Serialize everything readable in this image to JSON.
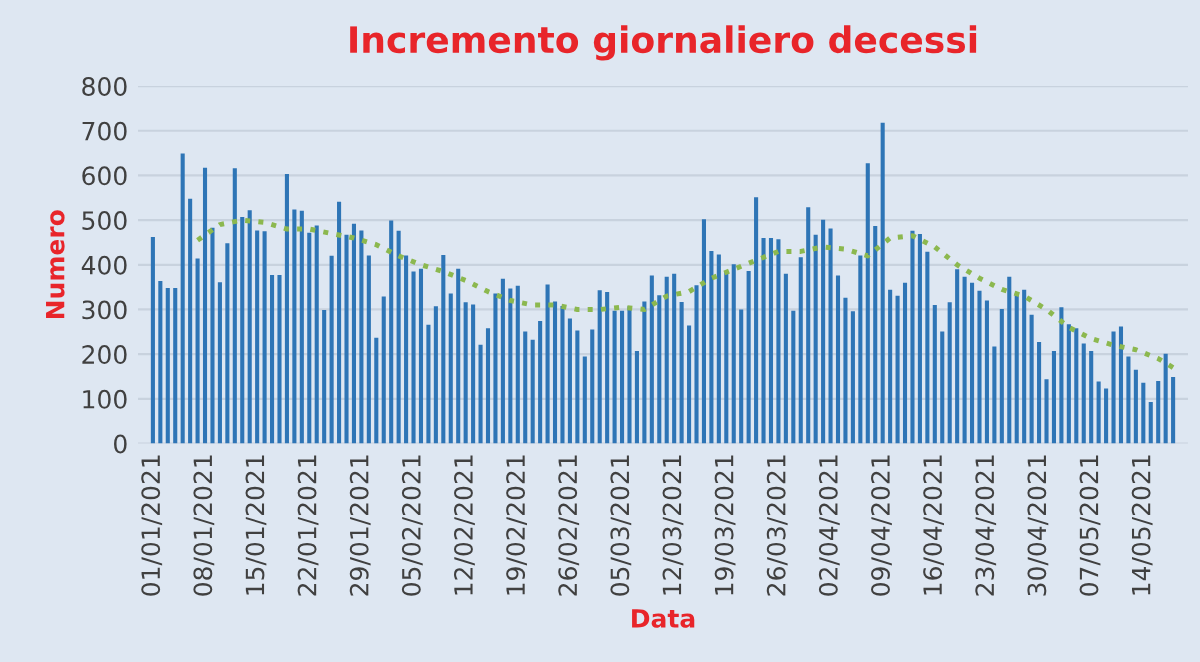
{
  "chart_data": {
    "type": "bar",
    "title": "Incremento giornaliero decessi",
    "xlabel": "Data",
    "ylabel": "Numero",
    "x": [
      "2021-01-01",
      "2021-01-02",
      "2021-01-03",
      "2021-01-04",
      "2021-01-05",
      "2021-01-06",
      "2021-01-07",
      "2021-01-08",
      "2021-01-09",
      "2021-01-10",
      "2021-01-11",
      "2021-01-12",
      "2021-01-13",
      "2021-01-14",
      "2021-01-15",
      "2021-01-16",
      "2021-01-17",
      "2021-01-18",
      "2021-01-19",
      "2021-01-20",
      "2021-01-21",
      "2021-01-22",
      "2021-01-23",
      "2021-01-24",
      "2021-01-25",
      "2021-01-26",
      "2021-01-27",
      "2021-01-28",
      "2021-01-29",
      "2021-01-30",
      "2021-01-31",
      "2021-02-01",
      "2021-02-02",
      "2021-02-03",
      "2021-02-04",
      "2021-02-05",
      "2021-02-06",
      "2021-02-07",
      "2021-02-08",
      "2021-02-09",
      "2021-02-10",
      "2021-02-11",
      "2021-02-12",
      "2021-02-13",
      "2021-02-14",
      "2021-02-15",
      "2021-02-16",
      "2021-02-17",
      "2021-02-18",
      "2021-02-19",
      "2021-02-20",
      "2021-02-21",
      "2021-02-22",
      "2021-02-23",
      "2021-02-24",
      "2021-02-25",
      "2021-02-26",
      "2021-02-27",
      "2021-02-28",
      "2021-03-01",
      "2021-03-02",
      "2021-03-03",
      "2021-03-04",
      "2021-03-05",
      "2021-03-06",
      "2021-03-07",
      "2021-03-08",
      "2021-03-09",
      "2021-03-10",
      "2021-03-11",
      "2021-03-12",
      "2021-03-13",
      "2021-03-14",
      "2021-03-15",
      "2021-03-16",
      "2021-03-17",
      "2021-03-18",
      "2021-03-19",
      "2021-03-20",
      "2021-03-21",
      "2021-03-22",
      "2021-03-23",
      "2021-03-24",
      "2021-03-25",
      "2021-03-26",
      "2021-03-27",
      "2021-03-28",
      "2021-03-29",
      "2021-03-30",
      "2021-03-31",
      "2021-04-01",
      "2021-04-02",
      "2021-04-03",
      "2021-04-04",
      "2021-04-05",
      "2021-04-06",
      "2021-04-07",
      "2021-04-08",
      "2021-04-09",
      "2021-04-10",
      "2021-04-11",
      "2021-04-12",
      "2021-04-13",
      "2021-04-14",
      "2021-04-15",
      "2021-04-16",
      "2021-04-17",
      "2021-04-18",
      "2021-04-19",
      "2021-04-20",
      "2021-04-21",
      "2021-04-22",
      "2021-04-23",
      "2021-04-24",
      "2021-04-25",
      "2021-04-26",
      "2021-04-27",
      "2021-04-28",
      "2021-04-29",
      "2021-04-30",
      "2021-05-01",
      "2021-05-02",
      "2021-05-03",
      "2021-05-04",
      "2021-05-05",
      "2021-05-06",
      "2021-05-07",
      "2021-05-08",
      "2021-05-09",
      "2021-05-10",
      "2021-05-11",
      "2021-05-12",
      "2021-05-13",
      "2021-05-14",
      "2021-05-15",
      "2021-05-16",
      "2021-05-17",
      "2021-05-18"
    ],
    "series": [
      {
        "color": "#2e75b6",
        "values": [
          462,
          364,
          348,
          348,
          649,
          548,
          414,
          617,
          483,
          361,
          448,
          616,
          507,
          522,
          477,
          475,
          377,
          377,
          603,
          524,
          521,
          472,
          488,
          299,
          420,
          541,
          467,
          492,
          477,
          421,
          237,
          329,
          499,
          476,
          421,
          385,
          391,
          266,
          307,
          422,
          336,
          391,
          316,
          311,
          221,
          258,
          336,
          369,
          347,
          353,
          251,
          232,
          274,
          356,
          318,
          308,
          280,
          253,
          195,
          255,
          343,
          339,
          297,
          297,
          307,
          207,
          318,
          376,
          332,
          373,
          380,
          317,
          264,
          354,
          502,
          431,
          423,
          386,
          401,
          300,
          386,
          551,
          460,
          460,
          457,
          380,
          297,
          417,
          529,
          467,
          501,
          481,
          376,
          326,
          296,
          421,
          627,
          487,
          718,
          344,
          331,
          360,
          476,
          469,
          429,
          310,
          251,
          316,
          390,
          373,
          360,
          342,
          320,
          217,
          301,
          373,
          336,
          344,
          288,
          227,
          144,
          207,
          305,
          267,
          258,
          224,
          207,
          139,
          123,
          251,
          262,
          195,
          165,
          136,
          93,
          140,
          201,
          149
        ]
      },
      {
        "type": "line",
        "color": "#8cb84f",
        "line_style": "dotted",
        "x": [
          "2021-01-07",
          "2021-01-10",
          "2021-01-13",
          "2021-01-16",
          "2021-01-19",
          "2021-01-22",
          "2021-01-25",
          "2021-01-28",
          "2021-01-31",
          "2021-02-03",
          "2021-02-06",
          "2021-02-09",
          "2021-02-12",
          "2021-02-15",
          "2021-02-18",
          "2021-02-21",
          "2021-02-24",
          "2021-02-27",
          "2021-03-02",
          "2021-03-05",
          "2021-03-08",
          "2021-03-11",
          "2021-03-14",
          "2021-03-17",
          "2021-03-20",
          "2021-03-23",
          "2021-03-26",
          "2021-03-29",
          "2021-04-01",
          "2021-04-04",
          "2021-04-07",
          "2021-04-10",
          "2021-04-13",
          "2021-04-16",
          "2021-04-19",
          "2021-04-22",
          "2021-04-25",
          "2021-04-28",
          "2021-05-01",
          "2021-05-04",
          "2021-05-07",
          "2021-05-10",
          "2021-05-13",
          "2021-05-16",
          "2021-05-18"
        ],
        "values": [
          455,
          490,
          500,
          495,
          480,
          480,
          470,
          460,
          445,
          420,
          400,
          385,
          365,
          340,
          320,
          310,
          310,
          300,
          300,
          305,
          300,
          330,
          340,
          370,
          390,
          410,
          430,
          430,
          440,
          435,
          420,
          460,
          465,
          440,
          400,
          370,
          345,
          330,
          300,
          260,
          235,
          220,
          210,
          190,
          170
        ]
      }
    ],
    "xlim": [
      "2020-12-30",
      "2021-05-20"
    ],
    "xticks": [
      {
        "value": "2021-01-01",
        "label": "01/01/2021"
      },
      {
        "value": "2021-01-08",
        "label": "08/01/2021"
      },
      {
        "value": "2021-01-15",
        "label": "15/01/2021"
      },
      {
        "value": "2021-01-22",
        "label": "22/01/2021"
      },
      {
        "value": "2021-01-29",
        "label": "29/01/2021"
      },
      {
        "value": "2021-02-05",
        "label": "05/02/2021"
      },
      {
        "value": "2021-02-12",
        "label": "12/02/2021"
      },
      {
        "value": "2021-02-19",
        "label": "19/02/2021"
      },
      {
        "value": "2021-02-26",
        "label": "26/02/2021"
      },
      {
        "value": "2021-03-05",
        "label": "05/03/2021"
      },
      {
        "value": "2021-03-12",
        "label": "12/03/2021"
      },
      {
        "value": "2021-03-19",
        "label": "19/03/2021"
      },
      {
        "value": "2021-03-26",
        "label": "26/03/2021"
      },
      {
        "value": "2021-04-02",
        "label": "02/04/2021"
      },
      {
        "value": "2021-04-09",
        "label": "09/04/2021"
      },
      {
        "value": "2021-04-16",
        "label": "16/04/2021"
      },
      {
        "value": "2021-04-23",
        "label": "23/04/2021"
      },
      {
        "value": "2021-04-30",
        "label": "30/04/2021"
      },
      {
        "value": "2021-05-07",
        "label": "07/05/2021"
      },
      {
        "value": "2021-05-14",
        "label": "14/05/2021"
      }
    ],
    "ylim": [
      0,
      800
    ],
    "yticks": [
      0,
      100,
      200,
      300,
      400,
      500,
      600,
      700,
      800
    ],
    "grid": "y"
  }
}
